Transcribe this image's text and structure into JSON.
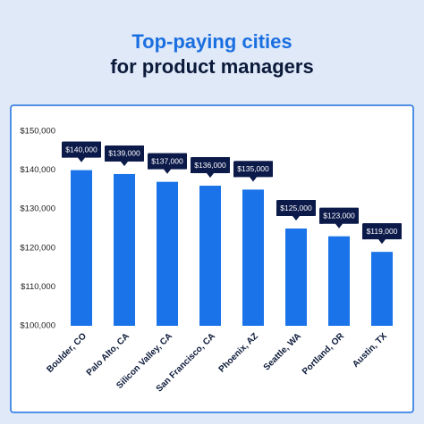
{
  "chart_data": {
    "type": "bar",
    "title": "Top-paying cities",
    "subtitle": "for product managers",
    "categories": [
      "Boulder, CO",
      "Palo Alto, CA",
      "Silicon Valley, CA",
      "San Francisco, CA",
      "Phoenix, AZ",
      "Seattle, WA",
      "Portland, OR",
      "Austin, TX"
    ],
    "values": [
      140000,
      139000,
      137000,
      136000,
      135000,
      125000,
      123000,
      119000
    ],
    "value_labels": [
      "$140,000",
      "$139,000",
      "$137,000",
      "$136,000",
      "$135,000",
      "$125,000",
      "$123,000",
      "$119,000"
    ],
    "color": "#1a73e8",
    "ylim": [
      100000,
      150000
    ],
    "yticks": [
      {
        "value": 100000,
        "label": "$100,000"
      },
      {
        "value": 110000,
        "label": "$110,000"
      },
      {
        "value": 120000,
        "label": "$120,000"
      },
      {
        "value": 130000,
        "label": "$130,000"
      },
      {
        "value": 140000,
        "label": "$140,000"
      },
      {
        "value": 150000,
        "label": "$150,000"
      }
    ],
    "grid": false
  }
}
